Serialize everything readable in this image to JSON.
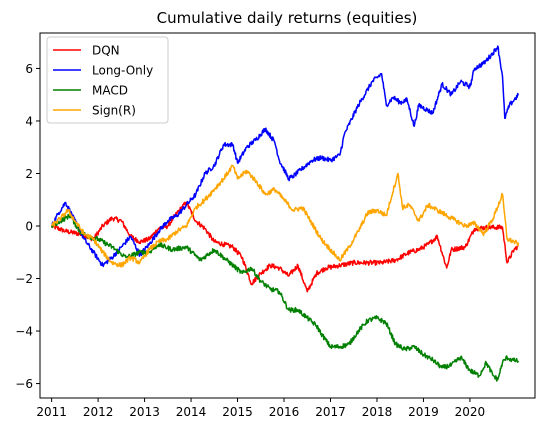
{
  "chart_data": {
    "type": "line",
    "title": "Cumulative daily returns (equities)",
    "xlabel": "",
    "ylabel": "",
    "xlim": [
      2010.75,
      2021.4
    ],
    "ylim": [
      -6.55,
      7.35
    ],
    "x_ticks": [
      2011,
      2012,
      2013,
      2014,
      2015,
      2016,
      2017,
      2018,
      2019,
      2020
    ],
    "y_ticks": [
      -6,
      -4,
      -2,
      0,
      2,
      4,
      6
    ],
    "grid": false,
    "legend_position": "upper-left",
    "series": [
      {
        "name": "DQN",
        "color": "#ff0000",
        "points": [
          [
            2011.0,
            0.0
          ],
          [
            2011.3,
            -0.2
          ],
          [
            2011.6,
            -0.3
          ],
          [
            2011.9,
            -0.5
          ],
          [
            2012.1,
            0.0
          ],
          [
            2012.3,
            0.3
          ],
          [
            2012.5,
            0.2
          ],
          [
            2012.7,
            -0.4
          ],
          [
            2012.9,
            -0.6
          ],
          [
            2013.1,
            -0.5
          ],
          [
            2013.3,
            -0.1
          ],
          [
            2013.5,
            0.0
          ],
          [
            2013.7,
            0.5
          ],
          [
            2013.9,
            0.9
          ],
          [
            2014.1,
            0.2
          ],
          [
            2014.3,
            -0.1
          ],
          [
            2014.5,
            -0.6
          ],
          [
            2014.7,
            -0.7
          ],
          [
            2014.9,
            -0.8
          ],
          [
            2015.1,
            -1.2
          ],
          [
            2015.3,
            -2.2
          ],
          [
            2015.5,
            -1.8
          ],
          [
            2015.7,
            -1.5
          ],
          [
            2015.9,
            -1.6
          ],
          [
            2016.1,
            -1.9
          ],
          [
            2016.3,
            -1.5
          ],
          [
            2016.5,
            -2.5
          ],
          [
            2016.7,
            -1.8
          ],
          [
            2016.9,
            -1.6
          ],
          [
            2017.2,
            -1.5
          ],
          [
            2017.5,
            -1.4
          ],
          [
            2017.8,
            -1.4
          ],
          [
            2018.1,
            -1.4
          ],
          [
            2018.4,
            -1.3
          ],
          [
            2018.7,
            -1.0
          ],
          [
            2018.9,
            -0.9
          ],
          [
            2019.1,
            -0.7
          ],
          [
            2019.3,
            -0.4
          ],
          [
            2019.5,
            -1.6
          ],
          [
            2019.6,
            -0.9
          ],
          [
            2019.9,
            -0.8
          ],
          [
            2020.1,
            -0.1
          ],
          [
            2020.4,
            -0.05
          ],
          [
            2020.7,
            -0.05
          ],
          [
            2020.8,
            -1.4
          ],
          [
            2020.95,
            -0.9
          ],
          [
            2021.05,
            -0.75
          ]
        ]
      },
      {
        "name": "Long-Only",
        "color": "#0000ff",
        "points": [
          [
            2011.0,
            0.0
          ],
          [
            2011.15,
            0.5
          ],
          [
            2011.3,
            0.9
          ],
          [
            2011.5,
            0.2
          ],
          [
            2011.7,
            -0.5
          ],
          [
            2011.9,
            -1.0
          ],
          [
            2012.1,
            -1.5
          ],
          [
            2012.3,
            -1.2
          ],
          [
            2012.5,
            -0.8
          ],
          [
            2012.7,
            -0.4
          ],
          [
            2012.9,
            -1.1
          ],
          [
            2013.1,
            -0.7
          ],
          [
            2013.3,
            -0.2
          ],
          [
            2013.5,
            0.2
          ],
          [
            2013.7,
            0.4
          ],
          [
            2013.9,
            0.8
          ],
          [
            2014.1,
            1.2
          ],
          [
            2014.3,
            2.0
          ],
          [
            2014.5,
            2.3
          ],
          [
            2014.7,
            3.1
          ],
          [
            2014.9,
            3.1
          ],
          [
            2015.0,
            2.4
          ],
          [
            2015.2,
            3.0
          ],
          [
            2015.4,
            3.3
          ],
          [
            2015.6,
            3.7
          ],
          [
            2015.8,
            3.2
          ],
          [
            2015.9,
            2.5
          ],
          [
            2016.1,
            1.8
          ],
          [
            2016.2,
            1.9
          ],
          [
            2016.4,
            2.2
          ],
          [
            2016.6,
            2.5
          ],
          [
            2016.8,
            2.6
          ],
          [
            2017.0,
            2.5
          ],
          [
            2017.2,
            2.7
          ],
          [
            2017.3,
            3.5
          ],
          [
            2017.6,
            4.6
          ],
          [
            2017.9,
            5.5
          ],
          [
            2018.1,
            5.8
          ],
          [
            2018.2,
            4.6
          ],
          [
            2018.35,
            4.9
          ],
          [
            2018.5,
            4.7
          ],
          [
            2018.65,
            4.8
          ],
          [
            2018.8,
            3.8
          ],
          [
            2018.9,
            4.6
          ],
          [
            2019.2,
            4.3
          ],
          [
            2019.4,
            5.4
          ],
          [
            2019.6,
            5.0
          ],
          [
            2019.8,
            5.5
          ],
          [
            2020.0,
            5.3
          ],
          [
            2020.1,
            6.0
          ],
          [
            2020.3,
            6.2
          ],
          [
            2020.5,
            6.6
          ],
          [
            2020.6,
            6.85
          ],
          [
            2020.7,
            5.7
          ],
          [
            2020.75,
            4.1
          ],
          [
            2020.85,
            4.6
          ],
          [
            2020.95,
            4.8
          ],
          [
            2021.05,
            5.0
          ]
        ]
      },
      {
        "name": "MACD",
        "color": "#008000",
        "points": [
          [
            2011.0,
            0.0
          ],
          [
            2011.2,
            0.2
          ],
          [
            2011.4,
            0.4
          ],
          [
            2011.6,
            -0.2
          ],
          [
            2011.8,
            -0.4
          ],
          [
            2012.0,
            -0.5
          ],
          [
            2012.3,
            -0.8
          ],
          [
            2012.6,
            -1.2
          ],
          [
            2012.9,
            -1.0
          ],
          [
            2013.1,
            -1.0
          ],
          [
            2013.3,
            -0.7
          ],
          [
            2013.6,
            -0.9
          ],
          [
            2013.9,
            -0.8
          ],
          [
            2014.2,
            -1.3
          ],
          [
            2014.5,
            -0.9
          ],
          [
            2014.7,
            -1.2
          ],
          [
            2014.9,
            -1.5
          ],
          [
            2015.1,
            -1.8
          ],
          [
            2015.3,
            -1.6
          ],
          [
            2015.5,
            -2.1
          ],
          [
            2015.7,
            -2.4
          ],
          [
            2015.9,
            -2.5
          ],
          [
            2016.1,
            -3.2
          ],
          [
            2016.3,
            -3.2
          ],
          [
            2016.5,
            -3.5
          ],
          [
            2016.7,
            -3.8
          ],
          [
            2016.8,
            -4.1
          ],
          [
            2017.0,
            -4.6
          ],
          [
            2017.2,
            -4.6
          ],
          [
            2017.4,
            -4.5
          ],
          [
            2017.6,
            -4.0
          ],
          [
            2017.8,
            -3.6
          ],
          [
            2018.0,
            -3.5
          ],
          [
            2018.2,
            -3.7
          ],
          [
            2018.4,
            -4.5
          ],
          [
            2018.6,
            -4.7
          ],
          [
            2018.8,
            -4.6
          ],
          [
            2019.0,
            -4.9
          ],
          [
            2019.2,
            -5.1
          ],
          [
            2019.4,
            -5.4
          ],
          [
            2019.6,
            -5.3
          ],
          [
            2019.8,
            -5.0
          ],
          [
            2020.0,
            -5.5
          ],
          [
            2020.2,
            -5.7
          ],
          [
            2020.35,
            -5.2
          ],
          [
            2020.5,
            -5.7
          ],
          [
            2020.6,
            -5.85
          ],
          [
            2020.7,
            -5.2
          ],
          [
            2020.8,
            -5.0
          ],
          [
            2020.9,
            -5.1
          ],
          [
            2021.05,
            -5.15
          ]
        ]
      },
      {
        "name": "Sign(R)",
        "color": "#ffa500",
        "points": [
          [
            2011.0,
            0.0
          ],
          [
            2011.2,
            0.3
          ],
          [
            2011.35,
            0.6
          ],
          [
            2011.5,
            0.2
          ],
          [
            2011.7,
            -0.3
          ],
          [
            2011.9,
            -0.5
          ],
          [
            2012.1,
            -1.0
          ],
          [
            2012.3,
            -1.4
          ],
          [
            2012.5,
            -1.5
          ],
          [
            2012.7,
            -1.2
          ],
          [
            2012.9,
            -1.4
          ],
          [
            2013.1,
            -0.9
          ],
          [
            2013.3,
            -0.6
          ],
          [
            2013.5,
            -0.5
          ],
          [
            2013.7,
            -0.2
          ],
          [
            2013.9,
            0.0
          ],
          [
            2014.1,
            0.7
          ],
          [
            2014.3,
            1.0
          ],
          [
            2014.5,
            1.4
          ],
          [
            2014.7,
            1.8
          ],
          [
            2014.9,
            2.3
          ],
          [
            2015.0,
            1.8
          ],
          [
            2015.2,
            2.1
          ],
          [
            2015.4,
            1.7
          ],
          [
            2015.6,
            1.2
          ],
          [
            2015.8,
            1.4
          ],
          [
            2016.0,
            1.0
          ],
          [
            2016.2,
            0.6
          ],
          [
            2016.4,
            0.7
          ],
          [
            2016.6,
            0.1
          ],
          [
            2016.8,
            -0.5
          ],
          [
            2017.0,
            -0.9
          ],
          [
            2017.2,
            -1.3
          ],
          [
            2017.4,
            -0.8
          ],
          [
            2017.6,
            -0.2
          ],
          [
            2017.8,
            0.5
          ],
          [
            2018.0,
            0.6
          ],
          [
            2018.2,
            0.4
          ],
          [
            2018.45,
            2.0
          ],
          [
            2018.55,
            0.7
          ],
          [
            2018.7,
            0.8
          ],
          [
            2018.9,
            0.2
          ],
          [
            2019.1,
            0.8
          ],
          [
            2019.3,
            0.6
          ],
          [
            2019.5,
            0.4
          ],
          [
            2019.7,
            0.2
          ],
          [
            2019.9,
            0.0
          ],
          [
            2020.1,
            0.1
          ],
          [
            2020.3,
            -0.3
          ],
          [
            2020.5,
            0.3
          ],
          [
            2020.7,
            1.2
          ],
          [
            2020.8,
            -0.5
          ],
          [
            2020.95,
            -0.6
          ],
          [
            2021.05,
            -0.7
          ]
        ]
      }
    ]
  }
}
